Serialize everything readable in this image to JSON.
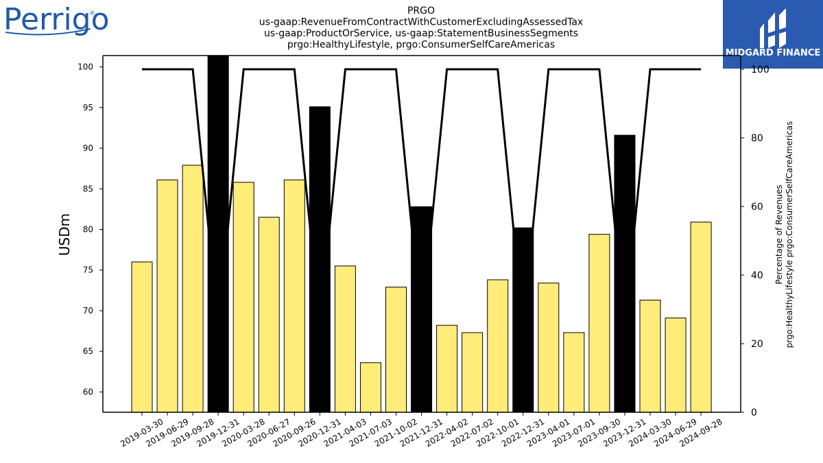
{
  "header": {
    "perrigo_logo_text": "Perrigo",
    "perrigo_reg_mark": "®",
    "midgard_logo_text": "MIDGARD FINANCE"
  },
  "chart_data": {
    "type": "bar",
    "title_lines": [
      "PRGO",
      "us-gaap:RevenueFromContractWithCustomerExcludingAssessedTax",
      "us-gaap:ProductOrService, us-gaap:StatementBusinessSegments",
      "prgo:HealthyLifestyle, prgo:ConsumerSelfCareAmericas"
    ],
    "ylabel": "USDm",
    "ylabel_right_lines": [
      "Percentage of Revenues",
      "prgo:HealthyLifestyle prgo:ConsumerSelfCareAmericas"
    ],
    "categories": [
      "2019-03-30",
      "2019-06-29",
      "2019-09-28",
      "2019-12-31",
      "2020-03-28",
      "2020-06-27",
      "2020-09-26",
      "2020-12-31",
      "2021-04-03",
      "2021-07-03",
      "2021-10-02",
      "2021-12-31",
      "2022-04-02",
      "2022-07-02",
      "2022-10-01",
      "2022-12-31",
      "2023-04-01",
      "2023-07-01",
      "2023-09-30",
      "2023-12-31",
      "2024-03-30",
      "2024-06-29",
      "2024-09-28"
    ],
    "values": [
      76.0,
      86.1,
      87.9,
      101.4,
      85.8,
      81.5,
      86.1,
      95.1,
      75.5,
      63.6,
      72.9,
      82.8,
      68.2,
      67.3,
      73.8,
      80.2,
      73.4,
      67.3,
      79.4,
      91.6,
      71.3,
      69.1,
      80.9
    ],
    "bar_types": [
      "quarter",
      "quarter",
      "quarter",
      "annual",
      "quarter",
      "quarter",
      "quarter",
      "annual",
      "quarter",
      "quarter",
      "quarter",
      "annual",
      "quarter",
      "quarter",
      "quarter",
      "annual",
      "quarter",
      "quarter",
      "quarter",
      "annual",
      "quarter",
      "quarter",
      "quarter"
    ],
    "percentage_series": [
      100,
      100,
      100,
      25,
      100,
      100,
      100,
      25,
      100,
      100,
      100,
      25,
      100,
      100,
      100,
      25,
      100,
      100,
      100,
      25,
      100,
      100,
      100
    ],
    "ylim": [
      57.5,
      101.4
    ],
    "yticks": [
      60,
      65,
      70,
      75,
      80,
      85,
      90,
      95,
      100
    ],
    "y2lim": [
      0,
      104
    ],
    "y2ticks": [
      0,
      20,
      40,
      60,
      80,
      100
    ],
    "colors": {
      "quarter": "#ffec79",
      "annual": "#000000",
      "line": "#000000"
    },
    "grid": false,
    "legend": "none"
  }
}
